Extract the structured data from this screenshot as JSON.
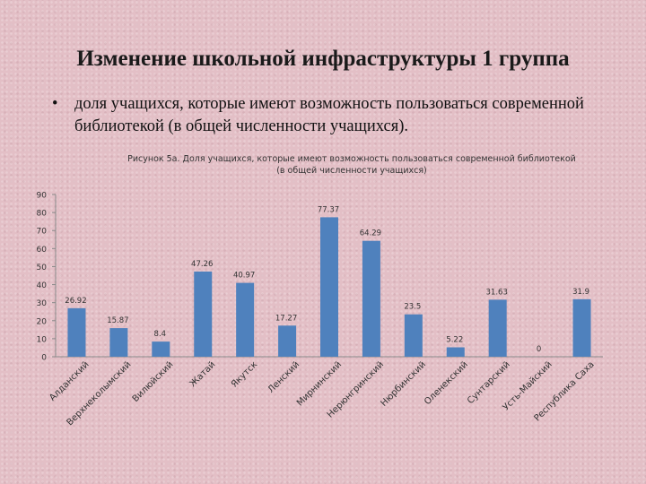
{
  "slide": {
    "title": "Изменение школьной инфраструктуры 1 группа",
    "bullet_marker": "•",
    "bullet_text": "доля учащихся, которые имеют возможность пользоваться современной библиотекой (в общей численности учащихся)."
  },
  "colors": {
    "bar": "#4f81bd",
    "axis": "#8a8a8a",
    "text": "#333333",
    "background": "#e3bfc6"
  },
  "chart_data": {
    "type": "bar",
    "title": "Рисунок 5а. Доля учащихся, которые имеют возможность пользоваться современной библиотекой",
    "subtitle": "(в общей численности учащихся)",
    "categories": [
      "Алданский",
      "Верхнеколымский",
      "Вилюйский",
      "Жатай",
      "Якутск",
      "Ленский",
      "Мирнинский",
      "Нерюнгринский",
      "Нюрбинский",
      "Оленекский",
      "Сунтарский",
      "Усть-Майский",
      "Республика Саха"
    ],
    "values": [
      26.92,
      15.87,
      8.4,
      47.26,
      40.97,
      17.27,
      77.37,
      64.29,
      23.5,
      5.22,
      31.63,
      0,
      31.9
    ],
    "value_labels": [
      "26.92",
      "15.87",
      "8.4",
      "47.26",
      "40.97",
      "17.27",
      "77.37",
      "64.29",
      "23.5",
      "5.22",
      "31.63",
      "0",
      "31.9"
    ],
    "y_ticks": [
      "0",
      "10",
      "20",
      "30",
      "40",
      "50",
      "60",
      "70",
      "80",
      "90"
    ],
    "ylim": [
      0,
      90
    ],
    "grid": false,
    "legend": "none"
  }
}
